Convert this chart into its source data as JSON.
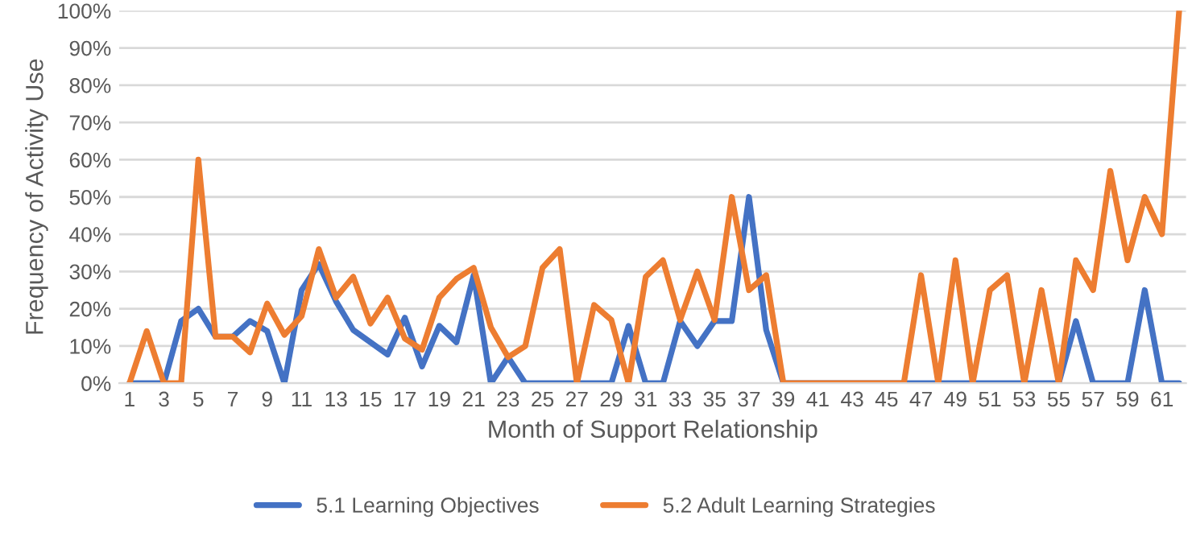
{
  "chart_data": {
    "type": "line",
    "xlabel": "Month of Support Relationship",
    "ylabel": "Frequency of Activity Use",
    "categories": [
      "1",
      null,
      "3",
      null,
      "5",
      null,
      "7",
      null,
      "9",
      null,
      "11",
      null,
      "13",
      null,
      "15",
      null,
      "17",
      null,
      "19",
      null,
      "21",
      null,
      "23",
      null,
      "25",
      null,
      "27",
      null,
      "29",
      null,
      "31",
      null,
      "33",
      null,
      "35",
      null,
      "37",
      null,
      "39",
      null,
      "41",
      null,
      "43",
      null,
      "45",
      null,
      "47",
      null,
      "49",
      null,
      "51",
      null,
      "53",
      null,
      "55",
      null,
      "57",
      null,
      "59",
      null,
      "61",
      null
    ],
    "series": [
      {
        "name": "5.1 Learning Objectives",
        "color": "#4472c4",
        "values": [
          0,
          0,
          0,
          16.7,
          20,
          12.5,
          12.5,
          16.7,
          14,
          0,
          25,
          32,
          22,
          14.3,
          11,
          7.7,
          17.6,
          4.5,
          15.4,
          11,
          29,
          0,
          7,
          0,
          0,
          0,
          0,
          0,
          0,
          15.4,
          0,
          0,
          16.7,
          10,
          16.7,
          16.7,
          50,
          14.3,
          0,
          0,
          0,
          0,
          0,
          0,
          0,
          0,
          0,
          0,
          0,
          0,
          0,
          0,
          0,
          0,
          0,
          16.7,
          0,
          0,
          0,
          25,
          0,
          0
        ]
      },
      {
        "name": "5.2 Adult Learning Strategies",
        "color": "#ed7d31",
        "values": [
          0,
          14,
          0,
          0,
          60,
          12.5,
          12.5,
          8.3,
          21.4,
          13,
          18,
          36,
          23,
          28.6,
          16,
          23,
          12,
          9,
          23,
          28,
          31,
          15,
          7,
          10,
          31,
          36,
          0,
          21,
          17,
          0,
          28.6,
          33,
          17,
          30,
          17,
          50,
          25,
          29,
          0,
          0,
          0,
          0,
          0,
          0,
          0,
          0,
          29,
          0,
          33,
          0,
          25,
          29,
          0,
          25,
          0,
          33,
          25,
          57,
          33,
          50,
          40,
          100
        ]
      }
    ],
    "ylim": [
      0,
      100
    ],
    "yticks": [
      {
        "value": 0,
        "label": "0%"
      },
      {
        "value": 10,
        "label": "10%"
      },
      {
        "value": 20,
        "label": "20%"
      },
      {
        "value": 30,
        "label": "30%"
      },
      {
        "value": 40,
        "label": "40%"
      },
      {
        "value": 50,
        "label": "50%"
      },
      {
        "value": 60,
        "label": "60%"
      },
      {
        "value": 70,
        "label": "70%"
      },
      {
        "value": 80,
        "label": "80%"
      },
      {
        "value": 90,
        "label": "90%"
      },
      {
        "value": 100,
        "label": "100%"
      }
    ],
    "grid": "y",
    "legend": "bottom",
    "marker": "none",
    "line_style": "solid"
  }
}
